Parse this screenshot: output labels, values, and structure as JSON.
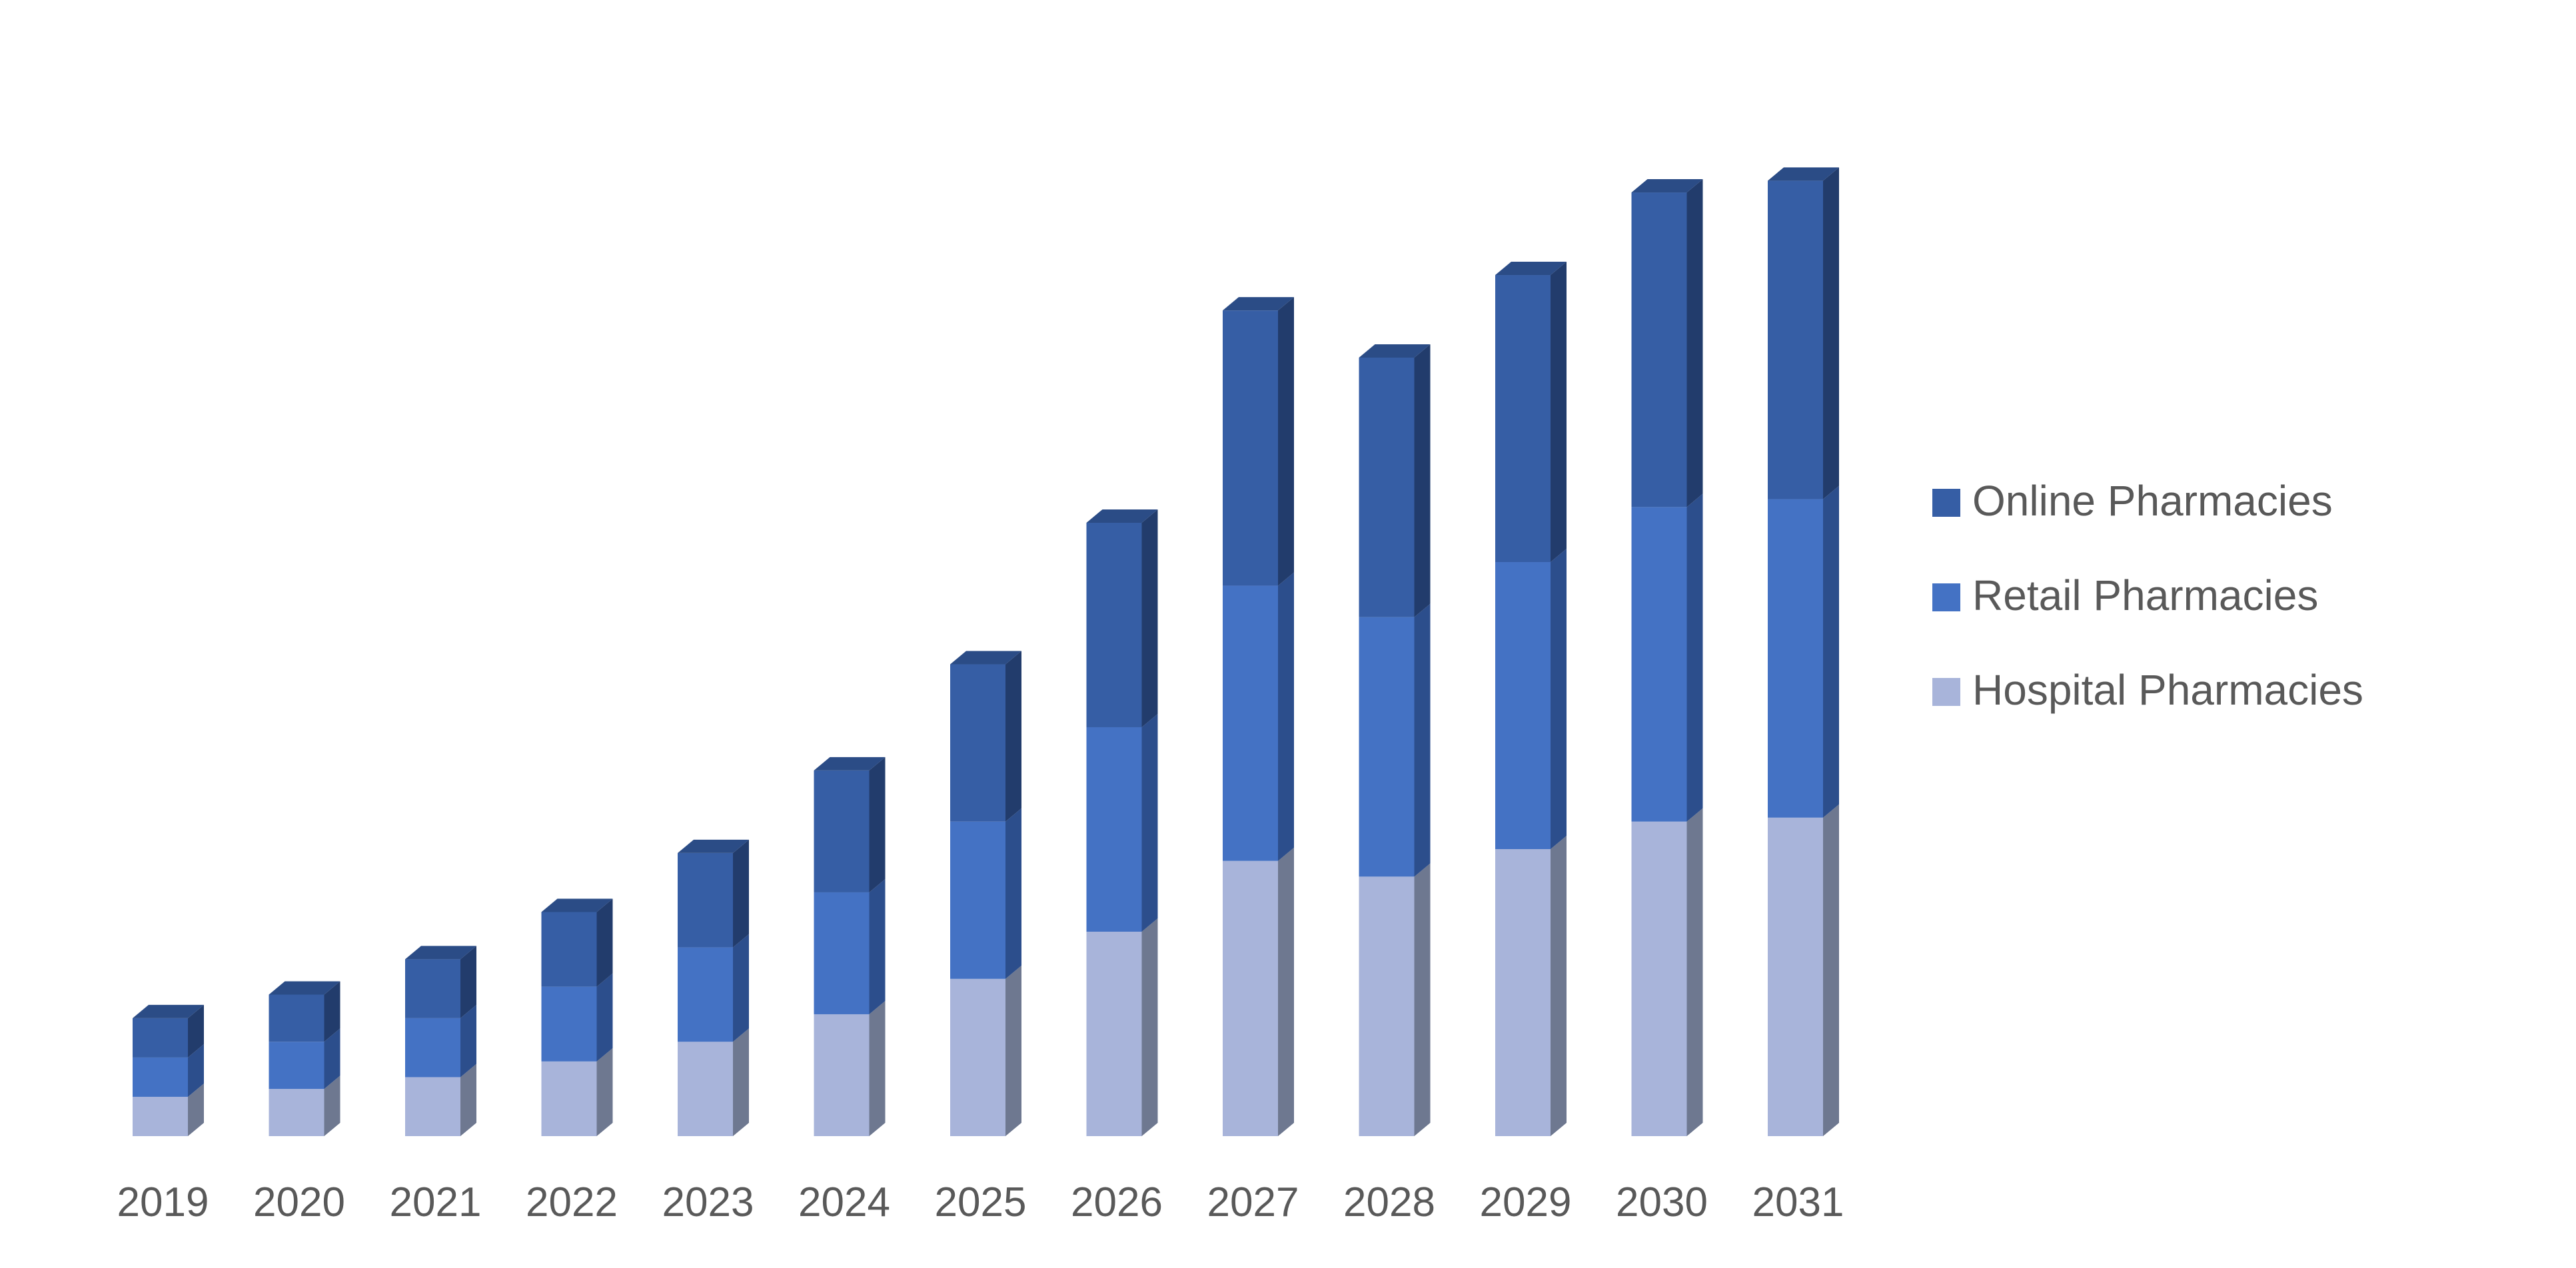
{
  "chart_data": {
    "type": "bar",
    "stacked": true,
    "style": "3d-stacked-column",
    "title": "",
    "xlabel": "",
    "ylabel": "",
    "categories": [
      "2019",
      "2020",
      "2021",
      "2022",
      "2023",
      "2024",
      "2025",
      "2026",
      "2027",
      "2028",
      "2029",
      "2030",
      "2031"
    ],
    "series": [
      {
        "name": "Hospital Pharmacies",
        "color": "#A8B4DA",
        "side_color": "#6E7890",
        "top_color": "#8D9AC2",
        "values": [
          10,
          12,
          15,
          19,
          24,
          31,
          40,
          52,
          70,
          66,
          73,
          80,
          81
        ]
      },
      {
        "name": "Retail Pharmacies",
        "color": "#4472C4",
        "side_color": "#2C4E8C",
        "top_color": "#3A63AE",
        "values": [
          10,
          12,
          15,
          19,
          24,
          31,
          40,
          52,
          70,
          66,
          73,
          80,
          81
        ]
      },
      {
        "name": "Online Pharmacies",
        "color": "#365EA5",
        "side_color": "#223C6C",
        "top_color": "#2B4C86",
        "values": [
          10,
          12,
          15,
          19,
          24,
          31,
          40,
          52,
          70,
          66,
          73,
          80,
          81
        ]
      }
    ],
    "ylim": [
      0,
      250
    ],
    "grid": false,
    "legend_position": "right",
    "legend_order": [
      "Online Pharmacies",
      "Retail Pharmacies",
      "Hospital Pharmacies"
    ]
  }
}
